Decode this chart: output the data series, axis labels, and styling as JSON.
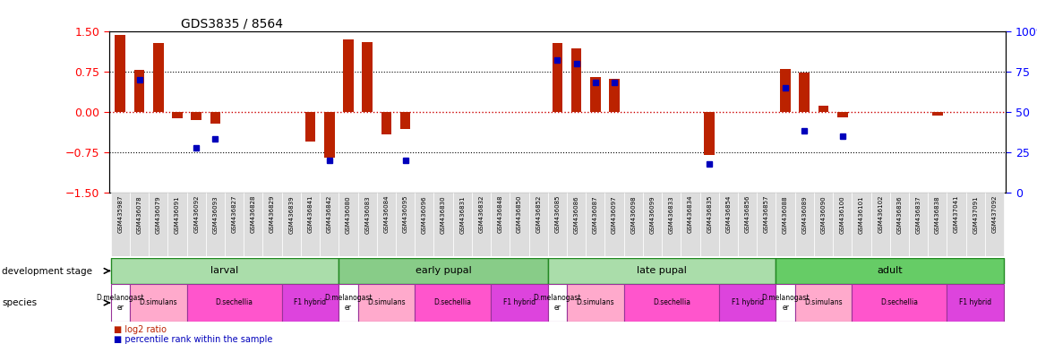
{
  "title": "GDS3835 / 8564",
  "samples": [
    "GSM435987",
    "GSM436078",
    "GSM436079",
    "GSM436091",
    "GSM436092",
    "GSM436093",
    "GSM436827",
    "GSM436828",
    "GSM436829",
    "GSM436839",
    "GSM436841",
    "GSM436842",
    "GSM436080",
    "GSM436083",
    "GSM436084",
    "GSM436095",
    "GSM436096",
    "GSM436830",
    "GSM436831",
    "GSM436832",
    "GSM436848",
    "GSM436850",
    "GSM436852",
    "GSM436085",
    "GSM436086",
    "GSM436087",
    "GSM436097",
    "GSM436098",
    "GSM436099",
    "GSM436833",
    "GSM436834",
    "GSM436835",
    "GSM436854",
    "GSM436856",
    "GSM436857",
    "GSM436088",
    "GSM436089",
    "GSM436090",
    "GSM436100",
    "GSM436101",
    "GSM436102",
    "GSM436836",
    "GSM436837",
    "GSM436838",
    "GSM437041",
    "GSM437091",
    "GSM437092"
  ],
  "log2_ratio": [
    1.42,
    0.78,
    1.27,
    -0.12,
    -0.15,
    -0.22,
    0.0,
    0.0,
    0.0,
    0.0,
    -0.55,
    -0.85,
    1.35,
    1.3,
    -0.42,
    -0.32,
    0.0,
    0.0,
    0.0,
    0.0,
    0.0,
    0.0,
    0.0,
    1.28,
    1.18,
    0.65,
    0.62,
    0.0,
    0.0,
    0.0,
    0.0,
    -0.8,
    0.0,
    0.0,
    0.0,
    0.8,
    0.72,
    0.12,
    -0.1,
    0.0,
    0.0,
    0.0,
    0.0,
    -0.07,
    0.0,
    0.0,
    0.0
  ],
  "percentile_idx": [
    1,
    4,
    5,
    11,
    15,
    23,
    24,
    25,
    26,
    31,
    35,
    36,
    38
  ],
  "percentile_val": [
    70,
    28,
    33,
    20,
    20,
    82,
    80,
    68,
    68,
    18,
    65,
    38,
    35
  ],
  "ylim_left": [
    -1.5,
    1.5
  ],
  "ylim_right": [
    0,
    100
  ],
  "yticks_left": [
    -1.5,
    -0.75,
    0.0,
    0.75,
    1.5
  ],
  "yticks_right": [
    0,
    25,
    50,
    75,
    100
  ],
  "bar_color": "#bb2200",
  "dot_color": "#0000bb",
  "zero_line_color": "#cc0000",
  "bg_color": "#ffffff",
  "tick_bg_color": "#dddddd",
  "dev_stages": [
    {
      "label": "larval",
      "start": 0,
      "end": 11,
      "color": "#aaddaa"
    },
    {
      "label": "early pupal",
      "start": 12,
      "end": 22,
      "color": "#88cc88"
    },
    {
      "label": "late pupal",
      "start": 23,
      "end": 34,
      "color": "#aaddaa"
    },
    {
      "label": "adult",
      "start": 35,
      "end": 46,
      "color": "#66cc66"
    }
  ],
  "species_blocks": [
    {
      "label": "D.melanogast\ner",
      "start": 0,
      "end": 0,
      "color": "#ffffff"
    },
    {
      "label": "D.simulans",
      "start": 1,
      "end": 3,
      "color": "#ffaacc"
    },
    {
      "label": "D.sechellia",
      "start": 4,
      "end": 8,
      "color": "#ff55cc"
    },
    {
      "label": "F1 hybrid",
      "start": 9,
      "end": 11,
      "color": "#dd44dd"
    },
    {
      "label": "D.melanogast\ner",
      "start": 12,
      "end": 12,
      "color": "#ffffff"
    },
    {
      "label": "D.simulans",
      "start": 13,
      "end": 15,
      "color": "#ffaacc"
    },
    {
      "label": "D.sechellia",
      "start": 16,
      "end": 19,
      "color": "#ff55cc"
    },
    {
      "label": "F1 hybrid",
      "start": 20,
      "end": 22,
      "color": "#dd44dd"
    },
    {
      "label": "D.melanogast\ner",
      "start": 23,
      "end": 23,
      "color": "#ffffff"
    },
    {
      "label": "D.simulans",
      "start": 24,
      "end": 26,
      "color": "#ffaacc"
    },
    {
      "label": "D.sechellia",
      "start": 27,
      "end": 31,
      "color": "#ff55cc"
    },
    {
      "label": "F1 hybrid",
      "start": 32,
      "end": 34,
      "color": "#dd44dd"
    },
    {
      "label": "D.melanogast\ner",
      "start": 35,
      "end": 35,
      "color": "#ffffff"
    },
    {
      "label": "D.simulans",
      "start": 36,
      "end": 38,
      "color": "#ffaacc"
    },
    {
      "label": "D.sechellia",
      "start": 39,
      "end": 43,
      "color": "#ff55cc"
    },
    {
      "label": "F1 hybrid",
      "start": 44,
      "end": 46,
      "color": "#dd44dd"
    }
  ]
}
